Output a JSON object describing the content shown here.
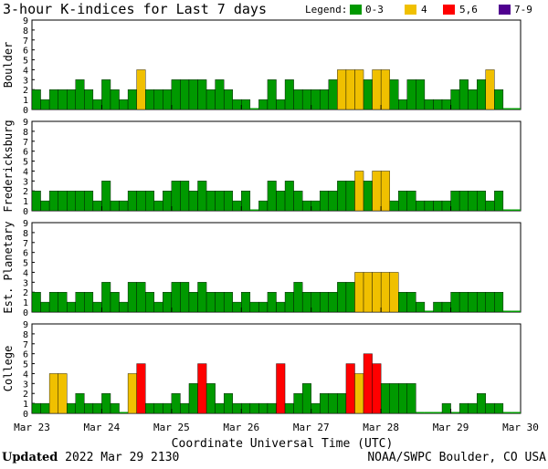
{
  "chart_data": {
    "type": "bar",
    "title": "3-hour K-indices for Last 7 days",
    "legend": {
      "label": "Legend:",
      "entries": [
        {
          "label": "0-3",
          "color": "#009900"
        },
        {
          "label": "4",
          "color": "#f0c000"
        },
        {
          "label": "5,6",
          "color": "#ff0000"
        },
        {
          "label": "7-9",
          "color": "#500090"
        }
      ]
    },
    "xlabel": "Coordinate Universal Time (UTC)",
    "x_tick_labels": [
      "Mar 23",
      "Mar 24",
      "Mar 25",
      "Mar 26",
      "Mar 27",
      "Mar 28",
      "Mar 29",
      "Mar 30"
    ],
    "y_ticks": [
      0,
      1,
      2,
      3,
      4,
      5,
      6,
      7,
      8,
      9
    ],
    "ylim": [
      0,
      9
    ],
    "intervals_per_day": 8,
    "days": 7,
    "stations": [
      {
        "name": "Boulder",
        "values": [
          2,
          1,
          2,
          2,
          2,
          3,
          2,
          1,
          3,
          2,
          1,
          2,
          4,
          2,
          2,
          2,
          3,
          3,
          3,
          3,
          2,
          3,
          2,
          1,
          1,
          0,
          1,
          3,
          1,
          3,
          2,
          2,
          2,
          2,
          3,
          4,
          4,
          4,
          3,
          4,
          4,
          3,
          1,
          3,
          3,
          1,
          1,
          1,
          2,
          3,
          2,
          3,
          4,
          2,
          0,
          0
        ]
      },
      {
        "name": "Fredericksburg",
        "values": [
          2,
          1,
          2,
          2,
          2,
          2,
          2,
          1,
          3,
          1,
          1,
          2,
          2,
          2,
          1,
          2,
          3,
          3,
          2,
          3,
          2,
          2,
          2,
          1,
          2,
          0,
          1,
          3,
          2,
          3,
          2,
          1,
          1,
          2,
          2,
          3,
          3,
          4,
          3,
          4,
          4,
          1,
          2,
          2,
          1,
          1,
          1,
          1,
          2,
          2,
          2,
          2,
          1,
          2,
          0,
          0
        ]
      },
      {
        "name": "Est. Planetary",
        "values": [
          2,
          1,
          2,
          2,
          1,
          2,
          2,
          1,
          3,
          2,
          1,
          3,
          3,
          2,
          1,
          2,
          3,
          3,
          2,
          3,
          2,
          2,
          2,
          1,
          2,
          1,
          1,
          2,
          1,
          2,
          3,
          2,
          2,
          2,
          2,
          3,
          3,
          4,
          4,
          4,
          4,
          4,
          2,
          2,
          1,
          0,
          1,
          1,
          2,
          2,
          2,
          2,
          2,
          2,
          0,
          0
        ]
      },
      {
        "name": "College",
        "values": [
          1,
          1,
          4,
          4,
          1,
          2,
          1,
          1,
          2,
          1,
          0,
          4,
          5,
          1,
          1,
          1,
          2,
          1,
          3,
          5,
          3,
          1,
          2,
          1,
          1,
          1,
          1,
          1,
          5,
          1,
          2,
          3,
          1,
          2,
          2,
          2,
          5,
          4,
          6,
          5,
          3,
          3,
          3,
          3,
          0,
          0,
          0,
          1,
          0,
          1,
          1,
          2,
          1,
          1,
          0,
          0
        ]
      }
    ]
  },
  "footer": {
    "updated_label": "Updated",
    "updated_value": " 2022 Mar 29 2130",
    "credit": "NOAA/SWPC Boulder, CO USA"
  }
}
